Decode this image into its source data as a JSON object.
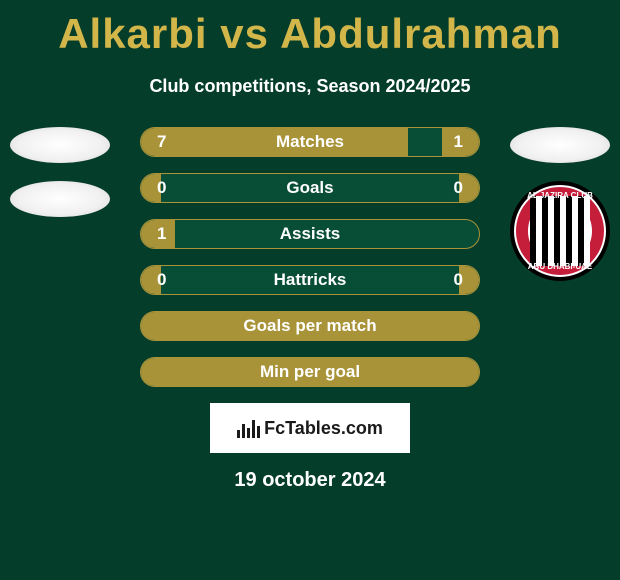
{
  "title": "Alkarbi vs Abdulrahman",
  "subtitle": "Club competitions, Season 2024/2025",
  "date": "19 october 2024",
  "branding": "FcTables.com",
  "colors": {
    "background": "#053d2b",
    "accent": "#d2b64a",
    "bar_fill": "#a99339",
    "bar_empty": "#084d36",
    "text_white": "#ffffff",
    "branding_bg": "#ffffff",
    "branding_text": "#1a1a1a"
  },
  "stats": [
    {
      "label": "Matches",
      "left_value": "7",
      "right_value": "1",
      "left_pct": 79,
      "right_pct": 11
    },
    {
      "label": "Goals",
      "left_value": "0",
      "right_value": "0",
      "left_pct": 6,
      "right_pct": 6
    },
    {
      "label": "Assists",
      "left_value": "1",
      "right_value": "",
      "left_pct": 10,
      "right_pct": 0
    },
    {
      "label": "Hattricks",
      "left_value": "0",
      "right_value": "0",
      "left_pct": 6,
      "right_pct": 6
    },
    {
      "label": "Goals per match",
      "left_value": "",
      "right_value": "",
      "left_pct": 100,
      "right_pct": 0,
      "full": true
    },
    {
      "label": "Min per goal",
      "left_value": "",
      "right_value": "",
      "left_pct": 100,
      "right_pct": 0,
      "full": true
    }
  ],
  "club_badge": {
    "top_text": "AL JAZIRA CLUB",
    "bottom_text": "ABU DHABI-UAE"
  }
}
